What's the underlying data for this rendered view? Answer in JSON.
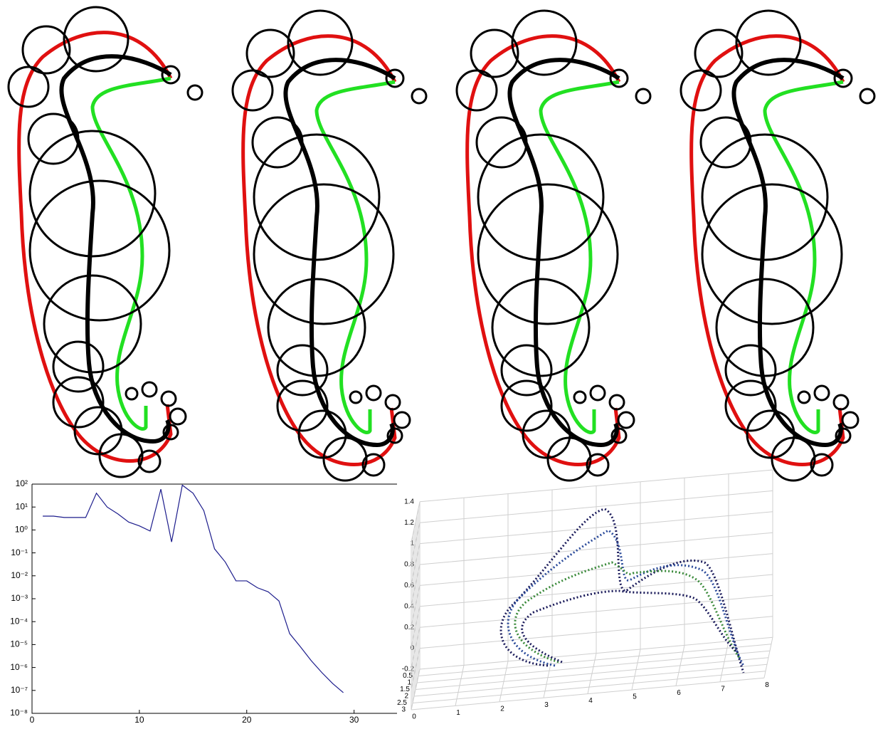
{
  "chart_data": [
    {
      "type": "line",
      "log_y": true,
      "color": "#1c1c8c",
      "x": [
        1,
        2,
        3,
        4,
        5,
        6,
        7,
        8,
        9,
        10,
        11,
        12,
        13,
        14,
        15,
        16,
        17,
        18,
        19,
        20,
        21,
        22,
        23,
        24,
        25,
        26,
        27,
        28,
        29
      ],
      "values": [
        4,
        4,
        3.5,
        3.5,
        3.5,
        40,
        10,
        5,
        2.2,
        1.5,
        0.9,
        60,
        0.3,
        90,
        40,
        7,
        0.15,
        0.04,
        0.006,
        0.006,
        0.003,
        0.002,
        0.0008,
        3e-05,
        8e-06,
        2e-06,
        6e-07,
        2e-07,
        8e-08
      ],
      "xlim": [
        0,
        34
      ],
      "xticks": [
        0,
        10,
        20,
        30
      ],
      "ylim": [
        1e-08,
        100
      ],
      "yticks": [
        {
          "value": 100,
          "label": "10²"
        },
        {
          "value": 10,
          "label": "10¹"
        },
        {
          "value": 1,
          "label": "10⁰"
        },
        {
          "value": 0.1,
          "label": "10⁻¹"
        },
        {
          "value": 0.01,
          "label": "10⁻²"
        },
        {
          "value": 0.001,
          "label": "10⁻³"
        },
        {
          "value": 0.0001,
          "label": "10⁻⁴"
        },
        {
          "value": 1e-05,
          "label": "10⁻⁵"
        },
        {
          "value": 1e-06,
          "label": "10⁻⁶"
        },
        {
          "value": 1e-07,
          "label": "10⁻⁷"
        },
        {
          "value": 1e-08,
          "label": "10⁻⁸"
        }
      ]
    },
    {
      "type": "line3d",
      "grid": true,
      "xlim": [
        0,
        8
      ],
      "xticks": [
        0,
        1,
        2,
        3,
        4,
        5,
        6,
        7,
        8
      ],
      "ylim": [
        0,
        3
      ],
      "yticks": [
        0.5,
        1,
        1.5,
        2,
        2.5,
        3
      ],
      "zlim": [
        -0.2,
        1.4
      ],
      "zticks": [
        -0.2,
        0,
        0.2,
        0.4,
        0.6,
        0.8,
        1,
        1.2,
        1.4
      ]
    }
  ]
}
